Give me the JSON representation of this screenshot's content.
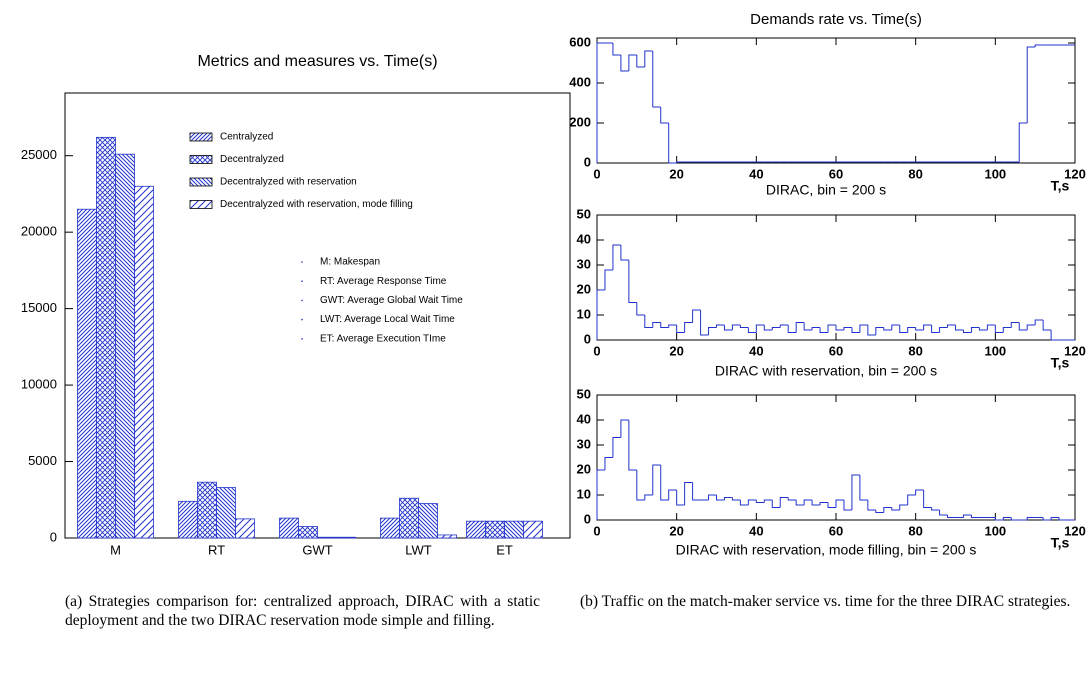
{
  "chart_data": [
    {
      "type": "bar",
      "title": "Metrics and measures vs. Time(s)",
      "categories": [
        "M",
        "RT",
        "GWT",
        "LWT",
        "ET"
      ],
      "series": [
        {
          "name": "Centralyzed",
          "color": "#2233cc",
          "hatch": "diag",
          "values": [
            21500,
            2400,
            1300,
            1300,
            1100
          ]
        },
        {
          "name": "Decentralyzed",
          "color": "#2233cc",
          "hatch": "cross",
          "values": [
            26200,
            3650,
            750,
            2600,
            1100
          ]
        },
        {
          "name": "Decentralyzed with reservation",
          "color": "#2233cc",
          "hatch": "back",
          "values": [
            25100,
            3300,
            50,
            2250,
            1100
          ]
        },
        {
          "name": "Decentralyzed with reservation, mode filling",
          "color": "#2233cc",
          "hatch": "sparse",
          "values": [
            23000,
            1250,
            50,
            200,
            1100
          ]
        }
      ],
      "annotations": [
        "M: Makespan",
        "RT: Average Response Time",
        "GWT: Average Global Wait Time",
        "LWT: Average Local Wait Time",
        "ET: Average Execution TIme"
      ],
      "ylim": [
        0,
        29100
      ],
      "yticks": [
        0,
        5000,
        10000,
        15000,
        20000,
        25000
      ]
    },
    {
      "type": "histogram",
      "title": "Demands rate vs. Time(s)",
      "xlabel": "DIRAC, bin = 200 s",
      "xunit": "T,s",
      "color": "#2233cc",
      "bins": [
        0,
        2,
        4,
        6,
        8,
        10,
        12,
        14,
        16,
        18,
        20,
        22,
        24,
        26,
        28,
        30,
        32,
        34,
        36,
        38,
        40,
        42,
        44,
        46,
        48,
        50,
        52,
        54,
        56,
        58,
        60,
        62,
        64,
        66,
        68,
        70,
        72,
        74,
        76,
        78,
        80,
        82,
        84,
        86,
        88,
        90,
        92,
        94,
        96,
        98,
        100,
        102,
        104,
        106,
        108,
        110,
        112,
        114,
        116,
        118,
        120
      ],
      "values": [
        600,
        600,
        540,
        460,
        540,
        480,
        560,
        280,
        200,
        0,
        5,
        5,
        5,
        5,
        5,
        5,
        5,
        5,
        5,
        5,
        5,
        5,
        5,
        5,
        5,
        5,
        5,
        5,
        5,
        5,
        5,
        5,
        5,
        5,
        5,
        5,
        5,
        5,
        5,
        5,
        5,
        5,
        5,
        5,
        5,
        5,
        5,
        5,
        5,
        5,
        5,
        5,
        5,
        200,
        580,
        590,
        590,
        590,
        590,
        590
      ],
      "xlim": [
        0,
        120
      ],
      "ylim": [
        0,
        625
      ],
      "xticks": [
        0,
        20,
        40,
        60,
        80,
        100,
        120
      ],
      "yticks": [
        0,
        200,
        400,
        600
      ]
    },
    {
      "type": "histogram",
      "xlabel": "DIRAC with reservation, bin = 200 s",
      "xunit": "T,s",
      "color": "#2233cc",
      "bins": [
        0,
        2,
        4,
        6,
        8,
        10,
        12,
        14,
        16,
        18,
        20,
        22,
        24,
        26,
        28,
        30,
        32,
        34,
        36,
        38,
        40,
        42,
        44,
        46,
        48,
        50,
        52,
        54,
        56,
        58,
        60,
        62,
        64,
        66,
        68,
        70,
        72,
        74,
        76,
        78,
        80,
        82,
        84,
        86,
        88,
        90,
        92,
        94,
        96,
        98,
        100,
        102,
        104,
        106,
        108,
        110,
        112,
        114,
        116,
        118,
        120
      ],
      "values": [
        20,
        28,
        38,
        32,
        15,
        10,
        5,
        7,
        5,
        6,
        3,
        7,
        12,
        2,
        5,
        6,
        4,
        6,
        5,
        3,
        6,
        4,
        5,
        6,
        3,
        7,
        4,
        5,
        3,
        6,
        4,
        5,
        3,
        6,
        2,
        5,
        4,
        6,
        3,
        5,
        4,
        6,
        3,
        5,
        6,
        4,
        3,
        5,
        4,
        6,
        3,
        5,
        7,
        4,
        6,
        8,
        4,
        0,
        0,
        0
      ],
      "xlim": [
        0,
        120
      ],
      "ylim": [
        0,
        50
      ],
      "xticks": [
        0,
        20,
        40,
        60,
        80,
        100,
        120
      ],
      "yticks": [
        0,
        10,
        20,
        30,
        40,
        50
      ]
    },
    {
      "type": "histogram",
      "xlabel": "DIRAC with reservation, mode filling, bin = 200 s",
      "xunit": "T,s",
      "color": "#2233cc",
      "bins": [
        0,
        2,
        4,
        6,
        8,
        10,
        12,
        14,
        16,
        18,
        20,
        22,
        24,
        26,
        28,
        30,
        32,
        34,
        36,
        38,
        40,
        42,
        44,
        46,
        48,
        50,
        52,
        54,
        56,
        58,
        60,
        62,
        64,
        66,
        68,
        70,
        72,
        74,
        76,
        78,
        80,
        82,
        84,
        86,
        88,
        90,
        92,
        94,
        96,
        98,
        100,
        102,
        104,
        106,
        108,
        110,
        112,
        114,
        116,
        118,
        120
      ],
      "values": [
        20,
        25,
        33,
        40,
        20,
        8,
        10,
        22,
        8,
        12,
        6,
        15,
        8,
        8,
        10,
        8,
        9,
        8,
        6,
        8,
        7,
        8,
        5,
        9,
        8,
        6,
        8,
        6,
        7,
        5,
        8,
        4,
        18,
        8,
        4,
        3,
        5,
        4,
        6,
        10,
        12,
        5,
        4,
        2,
        1,
        1,
        2,
        1,
        1,
        1,
        0,
        1,
        0,
        0,
        1,
        1,
        0,
        1,
        0,
        0
      ],
      "xlim": [
        0,
        120
      ],
      "ylim": [
        0,
        50
      ],
      "xticks": [
        0,
        20,
        40,
        60,
        80,
        100,
        120
      ],
      "yticks": [
        0,
        10,
        20,
        30,
        40,
        50
      ]
    }
  ],
  "captions": {
    "a": "(a) Strategies comparison for: centralized approach, DIRAC with a static deployment and the two DIRAC reservation mode simple and filling.",
    "b": "(b) Traffic on the match-maker service vs. time for the three DIRAC strategies."
  }
}
